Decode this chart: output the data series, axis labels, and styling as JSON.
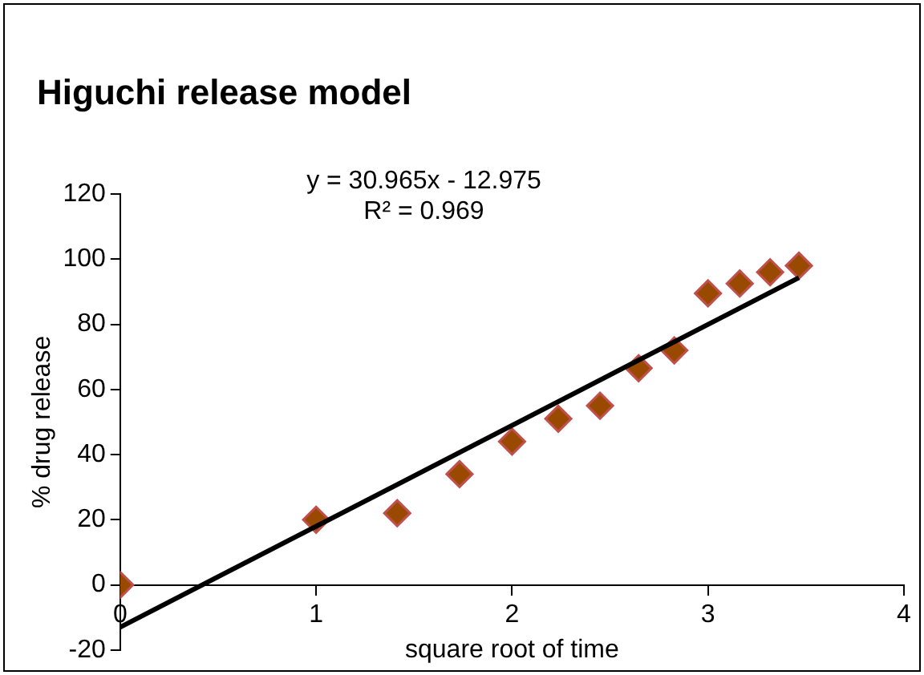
{
  "chart_data": {
    "type": "scatter",
    "title": "Higuchi release model",
    "xlabel": "square root of time",
    "ylabel": "% drug release",
    "annotations": [
      "y = 30.965x - 12.975",
      "R² = 0.969"
    ],
    "series": [
      {
        "color": "#9a4a00",
        "x": [
          0,
          1,
          1.414,
          1.732,
          2,
          2.236,
          2.449,
          2.646,
          2.828,
          3,
          3.162,
          3.317,
          3.464
        ],
        "values": [
          0,
          20,
          22,
          34,
          44,
          51,
          55,
          66.5,
          72,
          89.5,
          92.5,
          96,
          98
        ]
      },
      {
        "type": "line",
        "color": "#000000",
        "x": [
          0,
          3.464
        ],
        "values": [
          -13,
          94.3
        ],
        "marker": "none"
      }
    ],
    "marker": "diamond",
    "xlim": [
      0,
      4
    ],
    "xticks": [
      0,
      1,
      2,
      3,
      4
    ],
    "ylim": [
      -20,
      120
    ],
    "yticks": [
      -20,
      0,
      20,
      40,
      60,
      80,
      100,
      120
    ],
    "grid": false,
    "legend": false
  }
}
